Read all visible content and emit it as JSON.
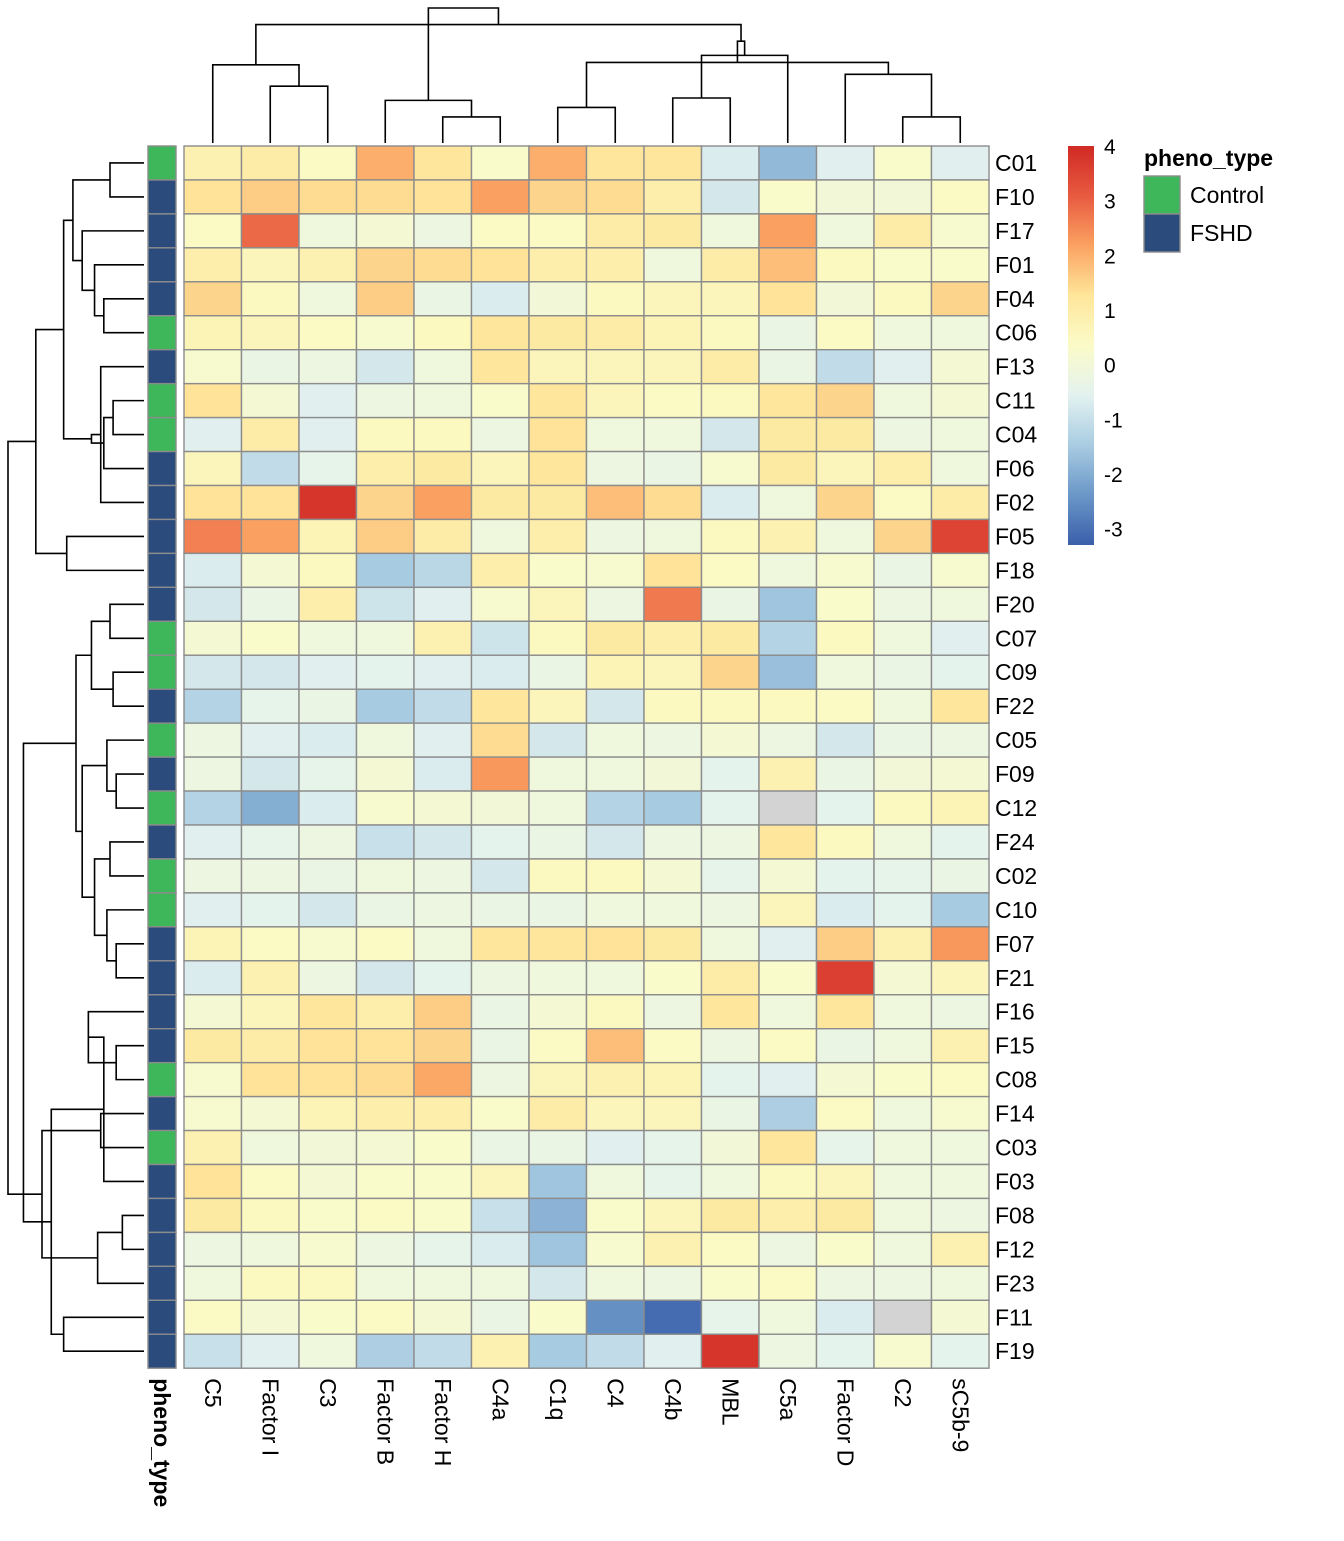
{
  "chart_data": {
    "type": "heatmap",
    "columns": [
      "C5",
      "Factor I",
      "C3",
      "Factor B",
      "Factor H",
      "C4a",
      "C1q",
      "C4",
      "C4b",
      "MBL",
      "C5a",
      "Factor D",
      "C2",
      "sC5b-9"
    ],
    "rows": [
      "C01",
      "F10",
      "F17",
      "F01",
      "F04",
      "C06",
      "F13",
      "C11",
      "C04",
      "F06",
      "F02",
      "F05",
      "F18",
      "F20",
      "C07",
      "C09",
      "F22",
      "C05",
      "F09",
      "C12",
      "F24",
      "C02",
      "C10",
      "F07",
      "F21",
      "F16",
      "F15",
      "C08",
      "F14",
      "C03",
      "F03",
      "F08",
      "F12",
      "F23",
      "F11",
      "F19"
    ],
    "pheno_type": [
      "Control",
      "FSHD",
      "FSHD",
      "FSHD",
      "FSHD",
      "Control",
      "FSHD",
      "Control",
      "Control",
      "FSHD",
      "FSHD",
      "FSHD",
      "FSHD",
      "FSHD",
      "Control",
      "Control",
      "FSHD",
      "Control",
      "FSHD",
      "Control",
      "FSHD",
      "Control",
      "Control",
      "FSHD",
      "FSHD",
      "FSHD",
      "FSHD",
      "Control",
      "FSHD",
      "Control",
      "FSHD",
      "FSHD",
      "FSHD",
      "FSHD",
      "FSHD",
      "FSHD"
    ],
    "values": [
      [
        0.8,
        1.0,
        0.4,
        2.0,
        1.2,
        0.3,
        2.0,
        1.2,
        1.2,
        -0.7,
        -1.8,
        -0.6,
        0.3,
        -0.6
      ],
      [
        1.3,
        1.6,
        1.4,
        1.4,
        1.3,
        2.2,
        1.5,
        1.4,
        0.9,
        -0.8,
        0.3,
        0.0,
        0.0,
        0.4
      ],
      [
        0.4,
        2.9,
        -0.1,
        0.1,
        -0.2,
        0.4,
        0.4,
        1.0,
        1.1,
        -0.1,
        2.2,
        -0.1,
        1.0,
        0.2
      ],
      [
        0.9,
        0.6,
        0.8,
        1.5,
        1.4,
        1.3,
        0.9,
        0.9,
        -0.1,
        1.0,
        1.8,
        0.5,
        0.3,
        0.3
      ],
      [
        1.5,
        0.5,
        -0.1,
        1.6,
        -0.3,
        -0.7,
        0.0,
        0.5,
        0.6,
        0.6,
        1.3,
        0.0,
        0.5,
        1.5
      ],
      [
        0.7,
        0.6,
        0.4,
        0.2,
        0.5,
        1.2,
        1.1,
        1.0,
        0.7,
        0.5,
        -0.3,
        0.4,
        -0.1,
        -0.1
      ],
      [
        0.2,
        -0.3,
        -0.2,
        -0.8,
        -0.1,
        1.2,
        0.6,
        0.6,
        0.6,
        1.0,
        -0.3,
        -1.1,
        -0.6,
        0.1
      ],
      [
        1.3,
        0.1,
        -0.6,
        -0.2,
        -0.1,
        0.3,
        1.2,
        0.6,
        0.4,
        0.5,
        1.2,
        1.5,
        -0.1,
        0.1
      ],
      [
        -0.6,
        1.0,
        -0.6,
        0.5,
        0.5,
        -0.2,
        1.3,
        -0.1,
        -0.1,
        -0.8,
        1.1,
        1.1,
        -0.2,
        -0.1
      ],
      [
        0.6,
        -1.1,
        -0.4,
        0.9,
        1.1,
        0.6,
        1.2,
        -0.2,
        -0.3,
        0.2,
        1.1,
        0.6,
        0.9,
        -0.1
      ],
      [
        1.3,
        1.3,
        3.8,
        1.5,
        2.2,
        1.1,
        1.1,
        1.8,
        1.4,
        -0.7,
        -0.1,
        1.5,
        0.4,
        1.0
      ],
      [
        2.6,
        2.2,
        0.7,
        1.6,
        1.0,
        -0.1,
        0.9,
        -0.2,
        -0.1,
        0.5,
        0.8,
        -0.1,
        1.5,
        3.5
      ],
      [
        -0.7,
        0.1,
        0.5,
        -1.5,
        -1.2,
        0.9,
        0.3,
        0.2,
        1.3,
        0.4,
        -0.1,
        0.2,
        -0.3,
        0.2
      ],
      [
        -0.8,
        -0.3,
        0.9,
        -0.9,
        -0.6,
        0.2,
        0.6,
        -0.2,
        2.7,
        -0.3,
        -1.6,
        0.3,
        -0.2,
        -0.1
      ],
      [
        0.1,
        0.3,
        -0.1,
        -0.1,
        0.8,
        -0.9,
        0.5,
        1.1,
        0.9,
        1.1,
        -1.3,
        0.5,
        -0.1,
        -0.6
      ],
      [
        -0.8,
        -0.8,
        -0.6,
        -0.5,
        -0.6,
        -0.7,
        -0.3,
        0.7,
        0.6,
        1.5,
        -1.7,
        -0.1,
        -0.3,
        -0.5
      ],
      [
        -1.3,
        -0.4,
        -0.3,
        -1.5,
        -1.1,
        1.2,
        0.6,
        -0.8,
        0.5,
        0.5,
        0.5,
        0.4,
        -0.1,
        1.2
      ],
      [
        -0.2,
        -0.6,
        -0.7,
        -0.1,
        -0.6,
        1.4,
        -0.8,
        -0.1,
        -0.2,
        0.1,
        -0.2,
        -0.8,
        -0.3,
        -0.2
      ],
      [
        -0.2,
        -0.8,
        -0.4,
        0.1,
        -0.7,
        2.3,
        -0.1,
        -0.1,
        0.0,
        -0.5,
        0.8,
        -0.3,
        0.0,
        0.1
      ],
      [
        -1.3,
        -2.0,
        -0.7,
        0.2,
        0.1,
        0.0,
        -0.1,
        -1.3,
        -1.5,
        -0.5,
        null,
        -0.5,
        0.5,
        0.7
      ],
      [
        -0.6,
        -0.4,
        -0.2,
        -1.0,
        -0.8,
        -0.5,
        -0.3,
        -0.8,
        -0.2,
        -0.2,
        1.2,
        0.5,
        -0.1,
        -0.5
      ],
      [
        -0.2,
        -0.2,
        -0.3,
        -0.1,
        -0.2,
        -0.8,
        0.5,
        0.5,
        0.1,
        -0.4,
        0.1,
        -0.5,
        -0.4,
        -0.3
      ],
      [
        -0.6,
        -0.5,
        -0.8,
        -0.3,
        -0.2,
        -0.3,
        -0.3,
        -0.1,
        -0.1,
        -0.2,
        0.6,
        -0.7,
        -0.5,
        -1.5
      ],
      [
        0.7,
        0.4,
        0.2,
        0.4,
        -0.1,
        1.2,
        1.2,
        1.3,
        1.1,
        -0.1,
        -0.6,
        1.6,
        0.8,
        2.3
      ],
      [
        -0.7,
        0.8,
        -0.2,
        -0.8,
        -0.5,
        -0.2,
        -0.1,
        -0.1,
        0.3,
        1.0,
        0.3,
        3.6,
        0.1,
        0.6
      ],
      [
        0.1,
        0.6,
        1.2,
        0.9,
        1.6,
        -0.3,
        0.1,
        0.5,
        -0.2,
        1.2,
        -0.1,
        1.2,
        -0.1,
        -0.2
      ],
      [
        1.1,
        1.0,
        1.3,
        1.3,
        1.5,
        -0.3,
        0.4,
        1.8,
        0.4,
        -0.2,
        0.4,
        -0.3,
        -0.1,
        0.8
      ],
      [
        0.2,
        1.3,
        1.3,
        1.4,
        2.1,
        -0.2,
        0.6,
        0.8,
        0.7,
        -0.5,
        -0.6,
        0.1,
        0.3,
        0.4
      ],
      [
        0.2,
        0.1,
        0.7,
        0.9,
        0.9,
        0.3,
        1.0,
        0.6,
        0.6,
        -0.3,
        -1.4,
        0.4,
        -0.1,
        0.2
      ],
      [
        0.8,
        -0.1,
        0.0,
        0.1,
        0.3,
        -0.3,
        -0.3,
        -0.6,
        -0.4,
        0.0,
        1.2,
        -0.4,
        -0.1,
        -0.1
      ],
      [
        1.3,
        0.4,
        0.1,
        0.3,
        0.3,
        0.6,
        -1.6,
        -0.1,
        -0.4,
        -0.1,
        0.5,
        0.6,
        -0.1,
        -0.1
      ],
      [
        1.1,
        0.5,
        0.3,
        0.4,
        0.3,
        -1.0,
        -1.9,
        0.3,
        0.6,
        1.1,
        0.9,
        1.1,
        -0.1,
        -0.2
      ],
      [
        -0.2,
        -0.1,
        0.2,
        -0.2,
        -0.4,
        -0.7,
        -1.6,
        0.2,
        0.8,
        0.4,
        -0.2,
        0.3,
        -0.1,
        0.8
      ],
      [
        -0.1,
        0.5,
        0.5,
        -0.1,
        -0.1,
        -0.1,
        -0.8,
        -0.1,
        -0.2,
        0.3,
        0.4,
        -0.2,
        -0.2,
        -0.1
      ],
      [
        0.4,
        0.1,
        0.3,
        0.4,
        0.1,
        -0.3,
        0.3,
        -2.5,
        -3.1,
        -0.4,
        -0.1,
        -0.7,
        null,
        0.1
      ],
      [
        -1.0,
        -0.6,
        -0.1,
        -1.4,
        -1.1,
        0.8,
        -1.5,
        -1.1,
        -0.6,
        3.8,
        -0.2,
        -0.5,
        0.2,
        -0.5
      ]
    ],
    "color_scale": {
      "ticks": [
        4,
        3,
        2,
        1,
        0,
        -1,
        -2,
        -3
      ],
      "tick_labels": [
        "4",
        "3",
        "2",
        "1",
        "0",
        "-1",
        "-2",
        "-3"
      ],
      "range": [
        -3.3,
        4.0
      ],
      "colors": [
        "#3a5faa",
        "#6a97c8",
        "#a9cce2",
        "#e3f2f0",
        "#fbfbc8",
        "#fee69a",
        "#fba262",
        "#e85a41",
        "#d02a24"
      ],
      "na_color": "#d3d3d3"
    },
    "annotation": {
      "name": "pheno_type",
      "legend_title": "pheno_type",
      "levels": [
        "Control",
        "FSHD"
      ],
      "colors": {
        "Control": "#3db75a",
        "FSHD": "#2a4b7c"
      }
    },
    "column_dendrogram": [
      [
        6,
        7,
        0.75
      ],
      [
        4,
        5,
        0.55
      ],
      [
        3,
        15,
        0.9
      ],
      [
        1,
        2,
        1.2
      ],
      [
        0,
        17,
        1.65
      ],
      [
        8,
        9,
        0.95
      ],
      [
        19,
        10,
        1.85
      ],
      [
        12,
        13,
        0.55
      ],
      [
        11,
        21,
        1.45
      ],
      [
        22,
        14,
        1.7
      ],
      [
        20,
        23,
        2.15
      ],
      [
        18,
        24,
        2.5
      ],
      [
        16,
        25,
        2.85
      ]
    ],
    "row_dendrogram": [
      [
        0,
        1,
        1.1
      ],
      [
        4,
        5,
        1.3
      ],
      [
        3,
        37,
        1.6
      ],
      [
        2,
        38,
        2.0
      ],
      [
        36,
        39,
        2.3
      ],
      [
        7,
        8,
        1.0
      ],
      [
        9,
        41,
        1.3
      ],
      [
        6,
        10,
        1.4
      ],
      [
        42,
        43,
        1.7
      ],
      [
        40,
        44,
        2.6
      ],
      [
        11,
        12,
        2.5
      ],
      [
        45,
        46,
        3.5
      ],
      [
        13,
        14,
        1.1
      ],
      [
        15,
        16,
        1.0
      ],
      [
        48,
        49,
        1.7
      ],
      [
        18,
        19,
        0.9
      ],
      [
        17,
        51,
        1.2
      ],
      [
        20,
        21,
        1.1
      ],
      [
        23,
        24,
        0.9
      ],
      [
        22,
        54,
        1.2
      ],
      [
        53,
        55,
        1.6
      ],
      [
        52,
        56,
        2.0
      ],
      [
        50,
        57,
        2.2
      ],
      [
        24.5,
        25,
        0.0
      ],
      [
        26,
        27,
        0.9
      ],
      [
        28,
        29,
        1.4
      ],
      [
        25,
        60,
        1.8
      ],
      [
        31,
        32,
        0.7
      ],
      [
        30,
        62,
        1.3
      ],
      [
        33,
        63,
        1.5
      ],
      [
        34,
        35,
        2.6
      ],
      [
        64,
        66,
        3.0
      ],
      [
        61,
        65,
        3.3
      ],
      [
        58,
        67,
        3.9
      ],
      [
        47,
        68,
        4.4
      ]
    ]
  }
}
